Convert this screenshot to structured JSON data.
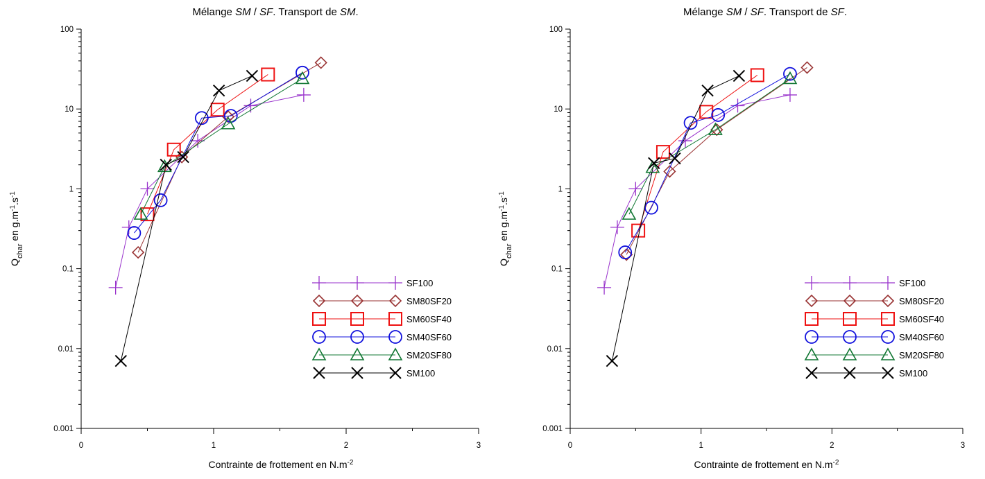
{
  "chart_data": [
    {
      "type": "scatter",
      "title_parts": [
        "Mélange ",
        "SM",
        " / ",
        "SF",
        ". Transport de ",
        "SM",
        "."
      ],
      "xlabel_parts": [
        "Contrainte de frottement en N.m",
        "-2"
      ],
      "ylabel_parts": [
        "Q",
        "char",
        " en g.m",
        "-1",
        ".s",
        "-1"
      ],
      "xlim": [
        0,
        3
      ],
      "ylim": [
        0.001,
        100
      ],
      "yscale": "log",
      "x_ticks": [
        "0",
        "1",
        "2",
        "3"
      ],
      "y_ticks": [
        "0.001",
        "0.01",
        "0.1",
        "1",
        "10",
        "100"
      ],
      "legend_position": "bottom-right",
      "series": [
        {
          "name": "SF100",
          "color": "#9933cc",
          "marker": "plus",
          "x": [
            0.26,
            0.36,
            0.5,
            0.88,
            1.28,
            1.68
          ],
          "y": [
            0.058,
            0.33,
            1.0,
            4.0,
            11.0,
            15.0
          ]
        },
        {
          "name": "SM80SF20",
          "color": "#993333",
          "marker": "diamond",
          "x": [
            0.43,
            0.76,
            1.11,
            1.81
          ],
          "y": [
            0.16,
            2.5,
            8.0,
            38.0
          ]
        },
        {
          "name": "SM60SF40",
          "color": "#ee1111",
          "marker": "square",
          "x": [
            0.5,
            0.7,
            1.03,
            1.41
          ],
          "y": [
            0.48,
            3.1,
            9.8,
            27.0
          ]
        },
        {
          "name": "SM40SF60",
          "color": "#1111dd",
          "marker": "circle",
          "x": [
            0.4,
            0.6,
            0.91,
            1.13,
            1.67
          ],
          "y": [
            0.28,
            0.72,
            7.7,
            8.2,
            28.5
          ]
        },
        {
          "name": "SM20SF80",
          "color": "#117733",
          "marker": "triangle",
          "x": [
            0.45,
            0.63,
            1.11,
            1.67
          ],
          "y": [
            0.48,
            1.9,
            6.5,
            24.0
          ]
        },
        {
          "name": "SM100",
          "color": "#000000",
          "marker": "x",
          "x": [
            0.3,
            0.64,
            0.77,
            1.04,
            1.29
          ],
          "y": [
            0.007,
            2.0,
            2.5,
            17.0,
            26.0
          ]
        }
      ]
    },
    {
      "type": "scatter",
      "title_parts": [
        "Mélange ",
        "SM",
        " / ",
        "SF",
        ". Transport de ",
        "SF",
        "."
      ],
      "xlabel_parts": [
        "Contrainte de frottement en N.m",
        "-2"
      ],
      "ylabel_parts": [
        "Q",
        "char",
        " en g.m",
        "-1",
        ".s",
        "-1"
      ],
      "xlim": [
        0,
        3
      ],
      "ylim": [
        0.001,
        100
      ],
      "yscale": "log",
      "x_ticks": [
        "0",
        "1",
        "2",
        "3"
      ],
      "y_ticks": [
        "0.001",
        "0.01",
        "0.1",
        "1",
        "10",
        "100"
      ],
      "legend_position": "bottom-right",
      "series": [
        {
          "name": "SF100",
          "color": "#9933cc",
          "marker": "plus",
          "x": [
            0.26,
            0.36,
            0.5,
            0.88,
            1.28,
            1.68
          ],
          "y": [
            0.058,
            0.33,
            1.0,
            4.0,
            11.0,
            15.0
          ]
        },
        {
          "name": "SM80SF20",
          "color": "#993333",
          "marker": "diamond",
          "x": [
            0.43,
            0.76,
            1.12,
            1.81
          ],
          "y": [
            0.15,
            1.65,
            5.5,
            33.0
          ]
        },
        {
          "name": "SM60SF40",
          "color": "#ee1111",
          "marker": "square",
          "x": [
            0.52,
            0.71,
            1.04,
            1.43
          ],
          "y": [
            0.3,
            2.9,
            9.2,
            26.5
          ]
        },
        {
          "name": "SM40SF60",
          "color": "#1111dd",
          "marker": "circle",
          "x": [
            0.42,
            0.62,
            0.92,
            1.13,
            1.68
          ],
          "y": [
            0.16,
            0.58,
            6.7,
            8.4,
            27.5
          ]
        },
        {
          "name": "SM20SF80",
          "color": "#117733",
          "marker": "triangle",
          "x": [
            0.45,
            0.63,
            1.11,
            1.68
          ],
          "y": [
            0.48,
            1.85,
            5.5,
            24.0
          ]
        },
        {
          "name": "SM100",
          "color": "#000000",
          "marker": "x",
          "x": [
            0.32,
            0.64,
            0.8,
            1.05,
            1.29
          ],
          "y": [
            0.007,
            2.1,
            2.4,
            17.0,
            26.0
          ]
        }
      ]
    }
  ]
}
